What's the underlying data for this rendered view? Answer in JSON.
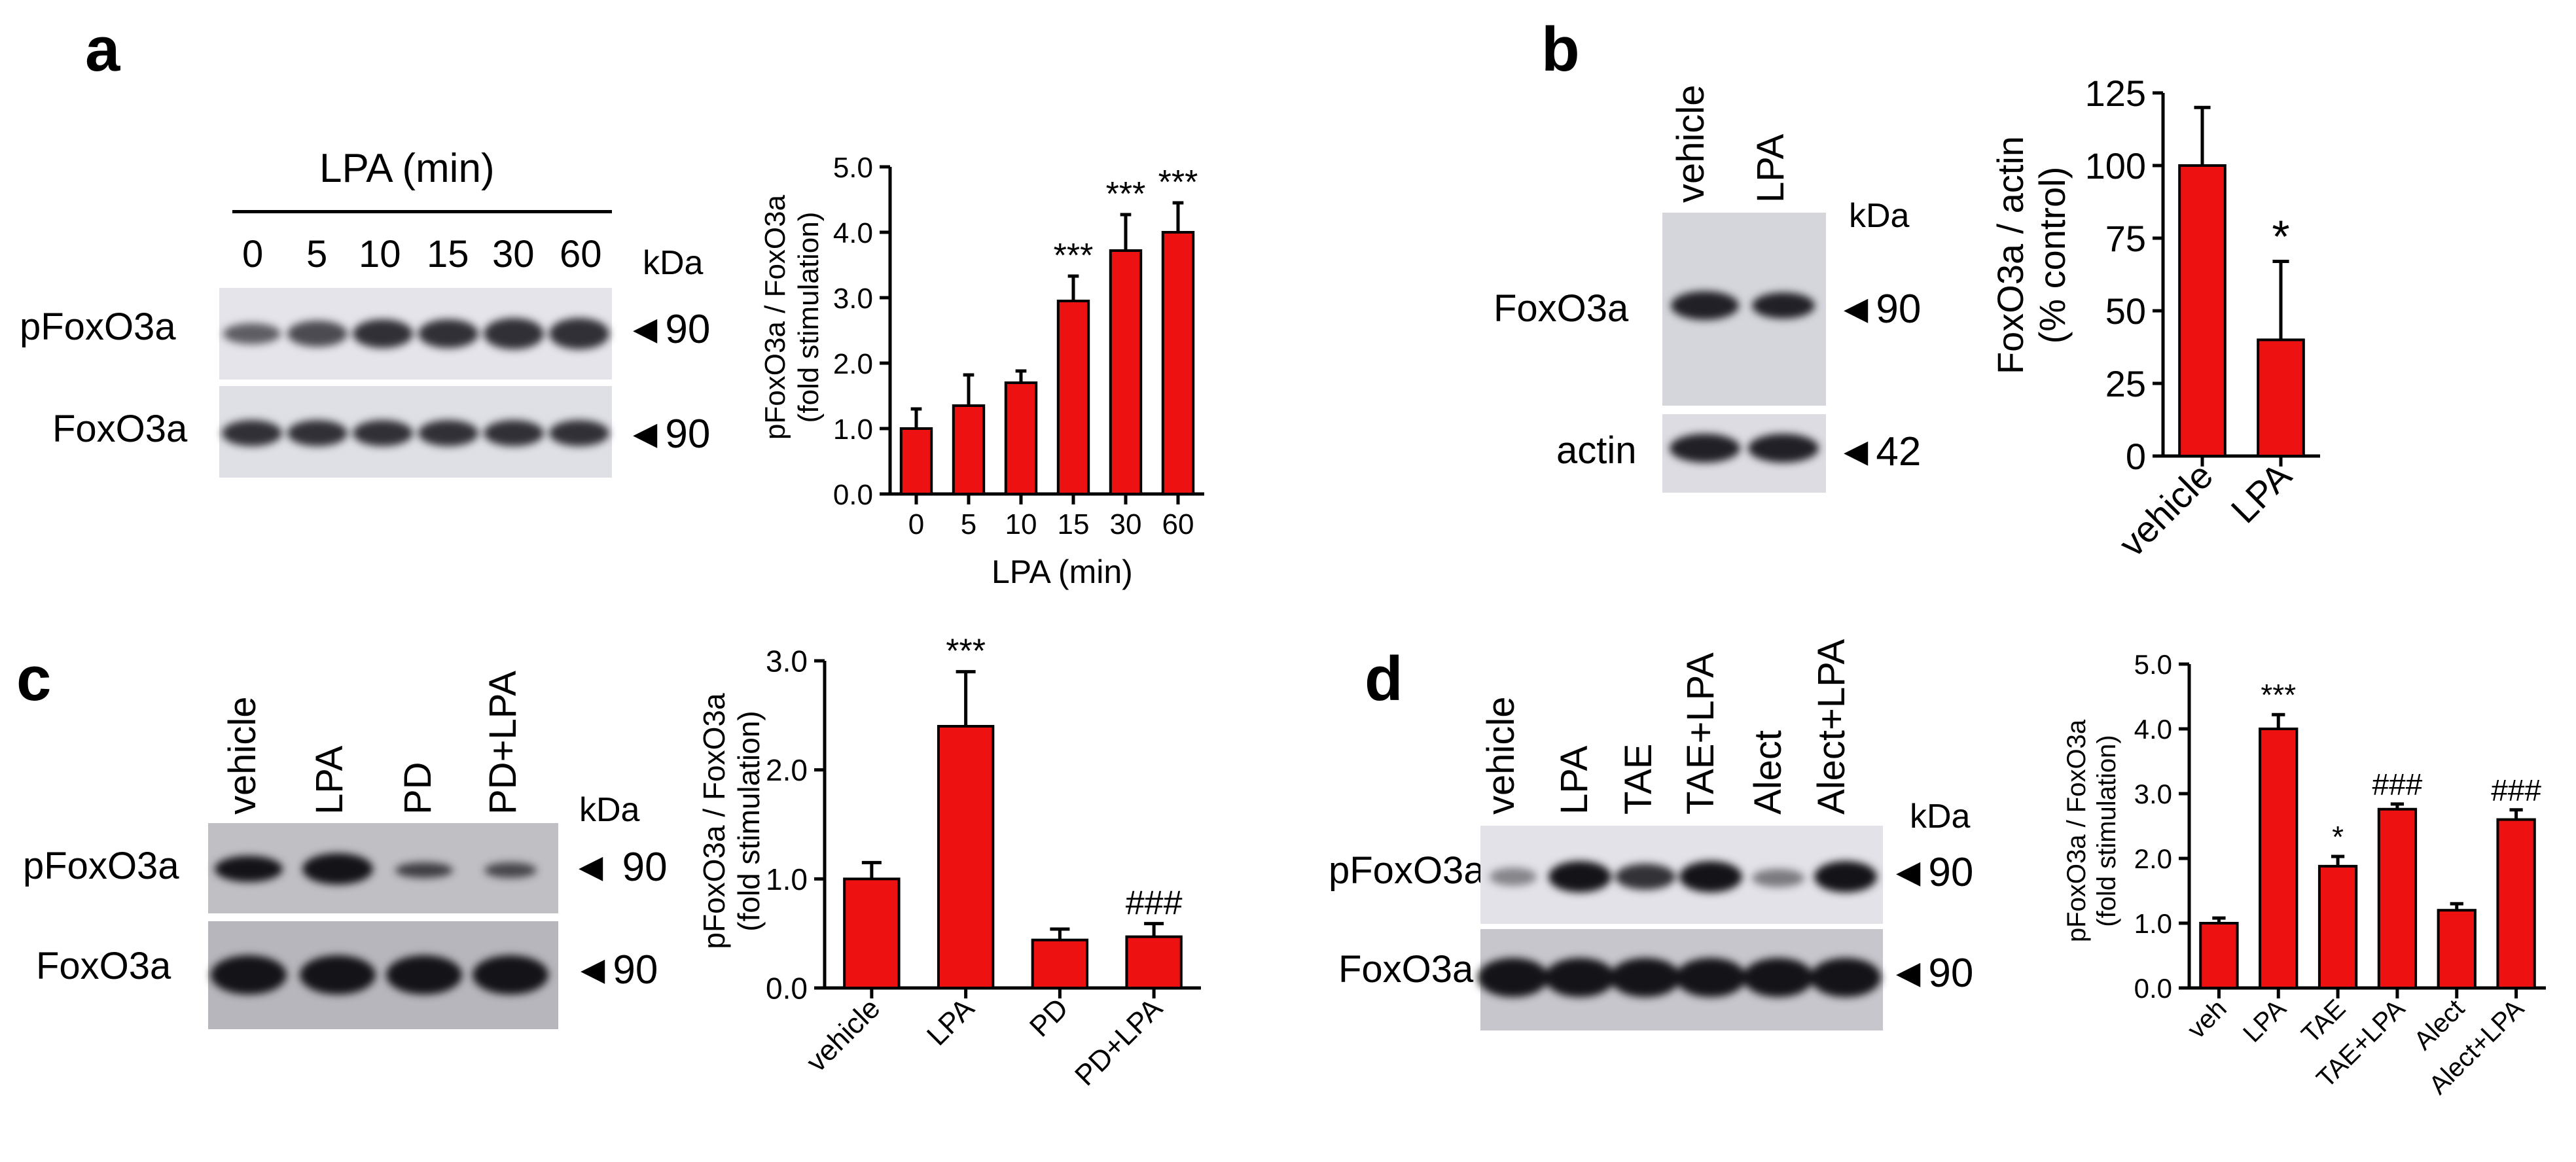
{
  "panels": {
    "a": {
      "label": "a",
      "blot": {
        "header": "LPA (min)",
        "lanes": [
          "0",
          "5",
          "10",
          "15",
          "30",
          "60"
        ],
        "kda": "kDa",
        "rows": [
          {
            "name": "pFoxO3a",
            "marker": "◄90"
          },
          {
            "name": "FoxO3a",
            "marker": "◄90"
          }
        ]
      }
    },
    "b": {
      "label": "b",
      "blot": {
        "lanes": [
          "vehicle",
          "LPA"
        ],
        "kda": "kDa",
        "rows": [
          {
            "name": "FoxO3a",
            "marker": "◄90"
          },
          {
            "name": "actin",
            "marker": "◄42"
          }
        ]
      }
    },
    "c": {
      "label": "c",
      "blot": {
        "lanes": [
          "vehicle",
          "LPA",
          "PD",
          "PD+LPA"
        ],
        "kda": "kDa",
        "rows": [
          {
            "name": "pFoxO3a",
            "marker": "◄ 90"
          },
          {
            "name": "FoxO3a",
            "marker": "◄90"
          }
        ]
      }
    },
    "d": {
      "label": "d",
      "blot": {
        "lanes": [
          "vehicle",
          "LPA",
          "TAE",
          "TAE+LPA",
          "Alect",
          "Alect+LPA"
        ],
        "kda": "kDa",
        "rows": [
          {
            "name": "pFoxO3a",
            "marker": "◄90"
          },
          {
            "name": "FoxO3a",
            "marker": "◄90"
          }
        ]
      }
    }
  },
  "chart_data": [
    {
      "id": "a",
      "type": "bar",
      "categories": [
        "0",
        "5",
        "10",
        "15",
        "30",
        "60"
      ],
      "values": [
        1.0,
        1.35,
        1.7,
        2.95,
        3.72,
        4.0
      ],
      "errors": [
        0.3,
        0.47,
        0.18,
        0.38,
        0.55,
        0.45
      ],
      "annotations": [
        "",
        "",
        "",
        "***",
        "***",
        "***"
      ],
      "xlabel": "LPA (min)",
      "ylabel": [
        "pFoxO3a / FoxO3a",
        "(fold stimulation)"
      ],
      "ylim": [
        0,
        5
      ],
      "yticks": [
        "0.0",
        "1.0",
        "2.0",
        "3.0",
        "4.0",
        "5.0"
      ],
      "ytick_values": [
        0,
        1,
        2,
        3,
        4,
        5
      ],
      "color": "#ee1111"
    },
    {
      "id": "b",
      "type": "bar",
      "categories": [
        "vehicle",
        "LPA"
      ],
      "values": [
        100,
        40
      ],
      "errors": [
        20,
        27
      ],
      "annotations": [
        "",
        "*"
      ],
      "xlabel": "",
      "ylabel": [
        "FoxO3a / actin",
        "(% control)"
      ],
      "ylim": [
        0,
        125
      ],
      "yticks": [
        "0",
        "25",
        "50",
        "75",
        "100",
        "125"
      ],
      "ytick_values": [
        0,
        25,
        50,
        75,
        100,
        125
      ],
      "color": "#ee1111"
    },
    {
      "id": "c",
      "type": "bar",
      "categories": [
        "vehicle",
        "LPA",
        "PD",
        "PD+LPA"
      ],
      "values": [
        1.0,
        2.4,
        0.44,
        0.47
      ],
      "errors": [
        0.15,
        0.5,
        0.1,
        0.12
      ],
      "annotations": [
        "",
        "***",
        "",
        "###"
      ],
      "xlabel": "",
      "ylabel": [
        "pFoxO3a / FoxO3a",
        "(fold stimulation)"
      ],
      "ylim": [
        0,
        3
      ],
      "yticks": [
        "0.0",
        "1.0",
        "2.0",
        "3.0"
      ],
      "ytick_values": [
        0,
        1,
        2,
        3
      ],
      "color": "#ee1111"
    },
    {
      "id": "d",
      "type": "bar",
      "categories": [
        "veh",
        "LPA",
        "TAE",
        "TAE+LPA",
        "Alect",
        "Alect+LPA"
      ],
      "values": [
        1.0,
        4.0,
        1.88,
        2.76,
        1.2,
        2.6
      ],
      "errors": [
        0.08,
        0.22,
        0.15,
        0.08,
        0.1,
        0.15
      ],
      "annotations": [
        "",
        "***",
        "*",
        "###",
        "",
        "###"
      ],
      "xlabel": "",
      "ylabel": [
        "pFoxO3a / FoxO3a",
        "(fold stimulation)"
      ],
      "ylim": [
        0,
        5
      ],
      "yticks": [
        "0.0",
        "1.0",
        "2.0",
        "3.0",
        "4.0",
        "5.0"
      ],
      "ytick_values": [
        0,
        1,
        2,
        3,
        4,
        5
      ],
      "color": "#ee1111"
    }
  ]
}
